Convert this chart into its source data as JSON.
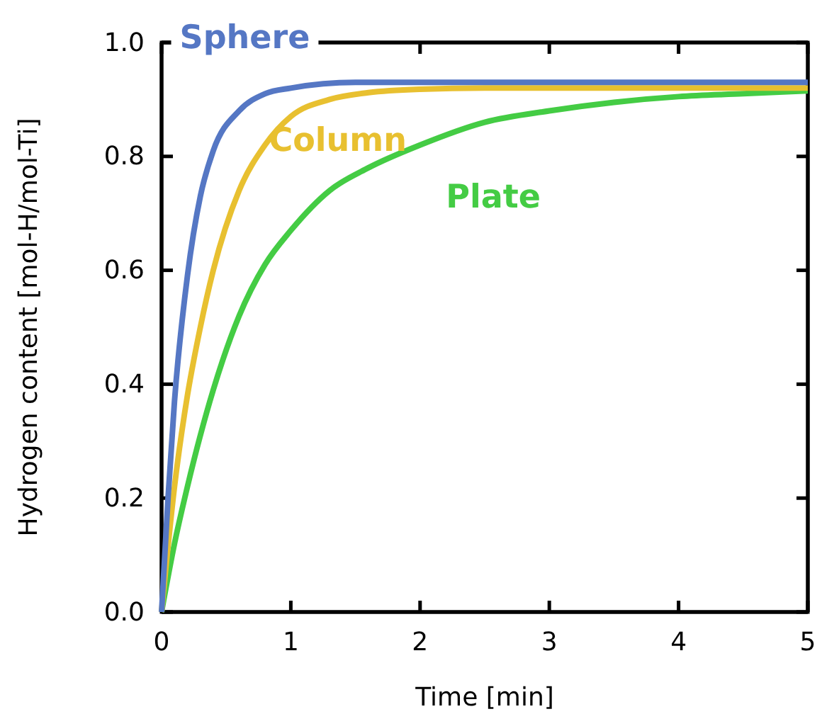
{
  "chart_data": {
    "type": "line",
    "xlabel": "Time [min]",
    "ylabel": "Hydrogen content [mol-H/mol-Ti]",
    "xlim": [
      0,
      5
    ],
    "ylim": [
      0,
      1.0
    ],
    "xticks": [
      0,
      1,
      2,
      3,
      4,
      5
    ],
    "yticks": [
      {
        "value": 0,
        "label": "0.0"
      },
      0.2,
      0.4,
      0.6,
      0.8,
      {
        "value": 1,
        "label": "1.0"
      }
    ],
    "grid": false,
    "legend": false,
    "marker": "none",
    "line_style": "solid",
    "series": [
      {
        "name": "Sphere",
        "color": "#5577c4",
        "x": [
          0,
          0.05,
          0.1,
          0.2,
          0.3,
          0.4,
          0.6,
          0.8,
          1,
          1.5,
          2,
          3,
          4,
          5
        ],
        "values": [
          0,
          0.2,
          0.37,
          0.59,
          0.73,
          0.81,
          0.88,
          0.91,
          0.92,
          0.93,
          0.93,
          0.93,
          0.93,
          0.93
        ]
      },
      {
        "name": "Column",
        "color": "#e8c030",
        "x": [
          0,
          0.1,
          0.2,
          0.3,
          0.4,
          0.6,
          0.8,
          1,
          1.3,
          1.6,
          2,
          2.5,
          3,
          4,
          5
        ],
        "values": [
          0,
          0.22,
          0.38,
          0.5,
          0.6,
          0.74,
          0.82,
          0.87,
          0.9,
          0.912,
          0.918,
          0.92,
          0.92,
          0.92,
          0.92
        ]
      },
      {
        "name": "Plate",
        "color": "#44cc44",
        "x": [
          0,
          0.1,
          0.2,
          0.4,
          0.6,
          0.8,
          1,
          1.3,
          1.6,
          2,
          2.5,
          3,
          3.5,
          4,
          4.5,
          5
        ],
        "values": [
          0,
          0.12,
          0.22,
          0.39,
          0.52,
          0.61,
          0.67,
          0.74,
          0.78,
          0.82,
          0.86,
          0.88,
          0.895,
          0.905,
          0.91,
          0.915
        ]
      }
    ]
  }
}
